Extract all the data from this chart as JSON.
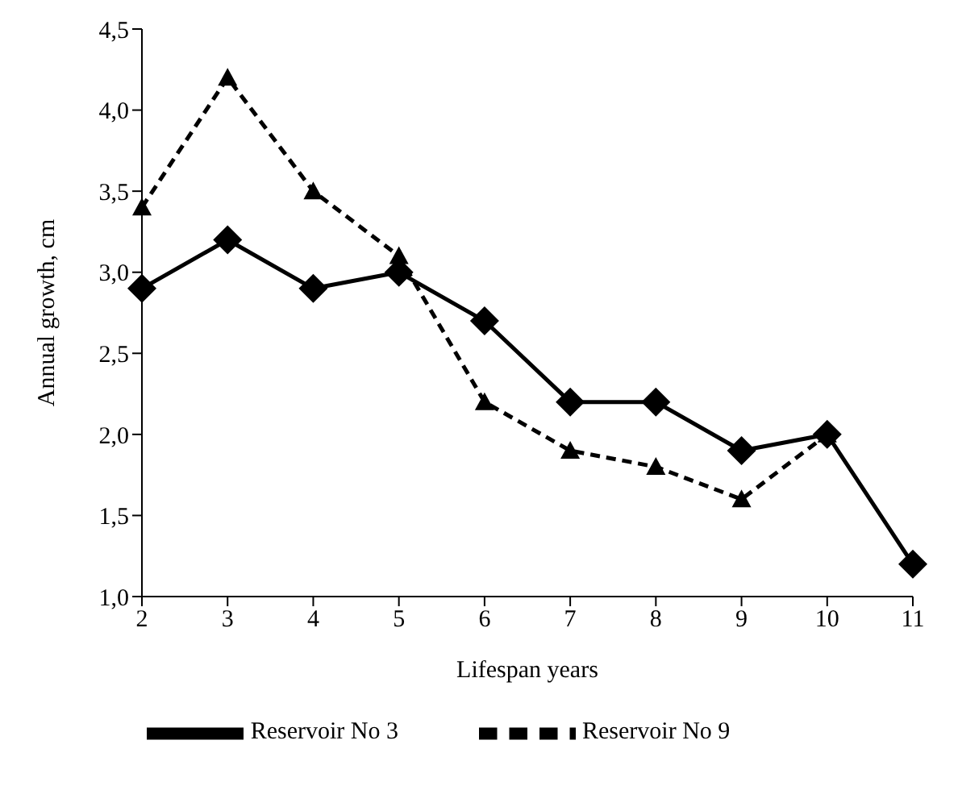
{
  "chart_data": {
    "type": "line",
    "xlabel": "Lifespan years",
    "ylabel": "Annual growth, cm",
    "categories": [
      "2",
      "3",
      "4",
      "5",
      "6",
      "7",
      "8",
      "9",
      "10",
      "11"
    ],
    "series": [
      {
        "name": "Reservoir No 3",
        "color": "#000000",
        "marker": "diamond",
        "line_style": "solid",
        "values": [
          2.9,
          3.2,
          2.9,
          3.0,
          2.7,
          2.2,
          2.2,
          1.9,
          2.0,
          1.2
        ]
      },
      {
        "name": "Reservoir No 9",
        "color": "#000000",
        "marker": "triangle",
        "line_style": "dashed",
        "values": [
          3.4,
          4.2,
          3.5,
          3.1,
          2.2,
          1.9,
          1.8,
          1.6,
          2.0,
          null
        ]
      }
    ],
    "ylim": [
      1,
      4.5
    ],
    "yticks": [
      {
        "value": 1,
        "label": "1,0"
      },
      {
        "value": 1.5,
        "label": "1,5"
      },
      {
        "value": 2,
        "label": "2,0"
      },
      {
        "value": 2.5,
        "label": "2,5"
      },
      {
        "value": 3,
        "label": "3,0"
      },
      {
        "value": 3.5,
        "label": "3,5"
      },
      {
        "value": 4,
        "label": "4,0"
      },
      {
        "value": 4.5,
        "label": "4,5"
      }
    ],
    "grid": false,
    "legend": "bottom"
  }
}
